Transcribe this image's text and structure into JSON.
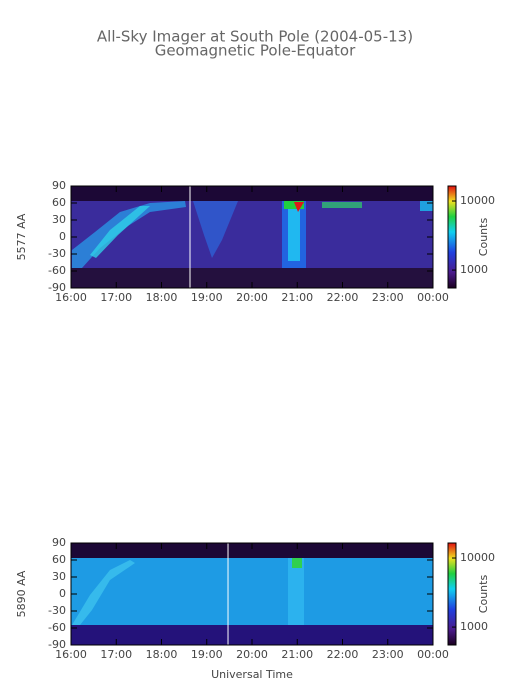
{
  "chart_data": [
    {
      "type": "heatmap",
      "title": "All-Sky Imager at South Pole (2004-05-13)",
      "subtitle": "Geomagnetic Pole-Equator",
      "ylabel": "5577 AA",
      "xlim": [
        16,
        24
      ],
      "xticks": [
        {
          "value": 16,
          "label": "16:00"
        },
        {
          "value": 17,
          "label": "17:00"
        },
        {
          "value": 18,
          "label": "18:00"
        },
        {
          "value": 19,
          "label": "19:00"
        },
        {
          "value": 20,
          "label": "20:00"
        },
        {
          "value": 21,
          "label": "21:00"
        },
        {
          "value": 22,
          "label": "22:00"
        },
        {
          "value": 23,
          "label": "23:00"
        },
        {
          "value": 24,
          "label": "00:00"
        }
      ],
      "ylim": [
        -90,
        90
      ],
      "yticks": [
        90,
        60,
        30,
        0,
        -30,
        -60,
        -90
      ],
      "colorbar": {
        "label": "Counts",
        "log": true,
        "lim": [
          550,
          16500
        ],
        "ticks": [
          1000,
          10000
        ]
      },
      "cursor": 18.63
    },
    {
      "type": "heatmap",
      "ylabel": "5890 AA",
      "xlabel": "Universal Time",
      "xlim": [
        16,
        24
      ],
      "xticks": [
        {
          "value": 16,
          "label": "16:00"
        },
        {
          "value": 17,
          "label": "17:00"
        },
        {
          "value": 18,
          "label": "18:00"
        },
        {
          "value": 19,
          "label": "19:00"
        },
        {
          "value": 20,
          "label": "20:00"
        },
        {
          "value": 21,
          "label": "21:00"
        },
        {
          "value": 22,
          "label": "22:00"
        },
        {
          "value": 23,
          "label": "23:00"
        },
        {
          "value": 24,
          "label": "00:00"
        }
      ],
      "ylim": [
        -90,
        90
      ],
      "yticks": [
        90,
        60,
        30,
        0,
        -30,
        -60,
        -90
      ],
      "colorbar": {
        "label": "Counts",
        "log": true,
        "lim": [
          550,
          16500
        ],
        "ticks": [
          1000,
          10000
        ]
      },
      "cursor": 19.47
    }
  ]
}
